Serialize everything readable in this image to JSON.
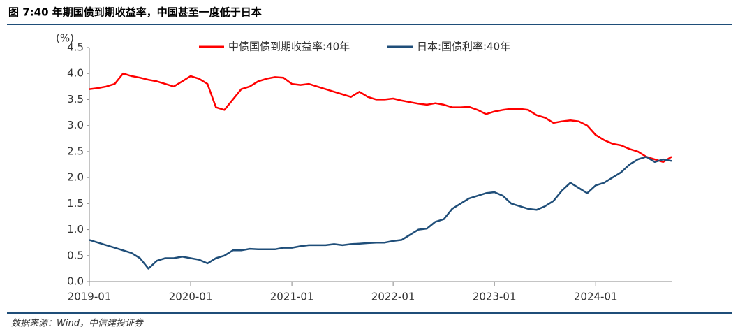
{
  "title": "图 7:40 年期国债到期收益率，中国甚至一度低于日本",
  "source": "数据来源：Wind，中信建投证券",
  "chart_data": {
    "type": "line",
    "y_unit": "(%)",
    "x": [
      "2019-01",
      "2019-02",
      "2019-03",
      "2019-04",
      "2019-05",
      "2019-06",
      "2019-07",
      "2019-08",
      "2019-09",
      "2019-10",
      "2019-11",
      "2019-12",
      "2020-01",
      "2020-02",
      "2020-03",
      "2020-04",
      "2020-05",
      "2020-06",
      "2020-07",
      "2020-08",
      "2020-09",
      "2020-10",
      "2020-11",
      "2020-12",
      "2021-01",
      "2021-02",
      "2021-03",
      "2021-04",
      "2021-05",
      "2021-06",
      "2021-07",
      "2021-08",
      "2021-09",
      "2021-10",
      "2021-11",
      "2021-12",
      "2022-01",
      "2022-02",
      "2022-03",
      "2022-04",
      "2022-05",
      "2022-06",
      "2022-07",
      "2022-08",
      "2022-09",
      "2022-10",
      "2022-11",
      "2022-12",
      "2023-01",
      "2023-02",
      "2023-03",
      "2023-04",
      "2023-05",
      "2023-06",
      "2023-07",
      "2023-08",
      "2023-09",
      "2023-10",
      "2023-11",
      "2023-12",
      "2024-01",
      "2024-02",
      "2024-03",
      "2024-04",
      "2024-05",
      "2024-06",
      "2024-07",
      "2024-08",
      "2024-09",
      "2024-10"
    ],
    "series": [
      {
        "name": "中债国债到期收益率:40年",
        "color": "#ff0000",
        "values": [
          3.7,
          3.72,
          3.75,
          3.8,
          4.0,
          3.95,
          3.92,
          3.88,
          3.85,
          3.8,
          3.75,
          3.85,
          3.95,
          3.9,
          3.8,
          3.35,
          3.3,
          3.5,
          3.7,
          3.75,
          3.85,
          3.9,
          3.93,
          3.92,
          3.8,
          3.78,
          3.8,
          3.75,
          3.7,
          3.65,
          3.6,
          3.55,
          3.65,
          3.55,
          3.5,
          3.5,
          3.52,
          3.48,
          3.45,
          3.42,
          3.4,
          3.43,
          3.4,
          3.35,
          3.35,
          3.36,
          3.3,
          3.22,
          3.27,
          3.3,
          3.32,
          3.32,
          3.3,
          3.2,
          3.15,
          3.05,
          3.08,
          3.1,
          3.08,
          3.0,
          2.82,
          2.72,
          2.65,
          2.62,
          2.55,
          2.5,
          2.4,
          2.35,
          2.3,
          2.4
        ]
      },
      {
        "name": "日本:国债利率:40年",
        "color": "#1f4e79",
        "values": [
          0.8,
          0.75,
          0.7,
          0.65,
          0.6,
          0.55,
          0.45,
          0.25,
          0.4,
          0.45,
          0.45,
          0.48,
          0.45,
          0.42,
          0.35,
          0.45,
          0.5,
          0.6,
          0.6,
          0.63,
          0.62,
          0.62,
          0.62,
          0.65,
          0.65,
          0.68,
          0.7,
          0.7,
          0.7,
          0.72,
          0.7,
          0.72,
          0.73,
          0.74,
          0.75,
          0.75,
          0.78,
          0.8,
          0.9,
          1.0,
          1.02,
          1.15,
          1.2,
          1.4,
          1.5,
          1.6,
          1.65,
          1.7,
          1.72,
          1.65,
          1.5,
          1.45,
          1.4,
          1.38,
          1.45,
          1.55,
          1.75,
          1.9,
          1.8,
          1.7,
          1.85,
          1.9,
          2.0,
          2.1,
          2.25,
          2.35,
          2.4,
          2.3,
          2.35,
          2.32
        ]
      }
    ],
    "xlim": [
      "2019-01",
      "2024-10"
    ],
    "xticks": [
      "2019-01",
      "2020-01",
      "2021-01",
      "2022-01",
      "2023-01",
      "2024-01"
    ],
    "ylim": [
      0,
      4.5
    ],
    "yticks": [
      {
        "value": 0,
        "label": "0.0"
      },
      {
        "value": 0.5,
        "label": "0.5"
      },
      {
        "value": 1,
        "label": "1.0"
      },
      {
        "value": 1.5,
        "label": "1.5"
      },
      {
        "value": 2,
        "label": "2.0"
      },
      {
        "value": 2.5,
        "label": "2.5"
      },
      {
        "value": 3,
        "label": "3.0"
      },
      {
        "value": 3.5,
        "label": "3.5"
      },
      {
        "value": 4,
        "label": "4.0"
      },
      {
        "value": 4.5,
        "label": "4.5"
      }
    ],
    "grid": false,
    "legend": "top"
  }
}
